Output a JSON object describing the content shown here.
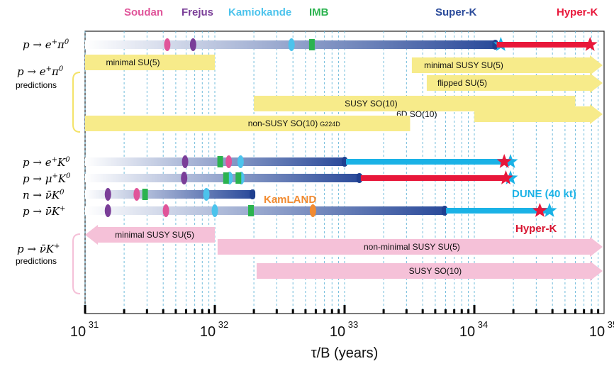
{
  "chart_data": {
    "type": "timeline",
    "xscale": "log10",
    "xlim": [
      1e+31,
      1e+35
    ],
    "xlabel": "τ/B (years)",
    "ticks": [
      {
        "base": "10",
        "exp": "31",
        "value": 1e+31
      },
      {
        "base": "10",
        "exp": "32",
        "value": 1e+32
      },
      {
        "base": "10",
        "exp": "33",
        "value": 1e+33
      },
      {
        "base": "10",
        "exp": "34",
        "value": 1e+34
      },
      {
        "base": "10",
        "exp": "35",
        "value": 1e+35
      }
    ],
    "experiments": [
      {
        "name": "Soudan",
        "color": "#e0559a",
        "position": 1.25e+31
      },
      {
        "name": "Frejus",
        "color": "#7a3e98",
        "position": 5e+31
      },
      {
        "name": "Kamiokande",
        "color": "#4cc3ec",
        "position": 1.8e+32
      },
      {
        "name": "IMB",
        "color": "#2bb34f",
        "position": 6e+32
      },
      {
        "name": "Super-K",
        "color": "#2a4a9a",
        "position": 1.2e+34
      },
      {
        "name": "Hyper-K",
        "color": "#e8173a",
        "position": 8e+34
      }
    ],
    "extra_labels": [
      {
        "text": "KamLAND",
        "color": "#f28b30"
      },
      {
        "text": "DUNE (40 kt)",
        "color": "#1ab2e6"
      },
      {
        "text": "Hyper-K",
        "color": "#d7132f"
      }
    ],
    "groups": [
      {
        "label": "predictions",
        "mode": "p → e⁺π⁰"
      },
      {
        "label": "predictions",
        "mode": "p → ν̄K⁺"
      }
    ],
    "modes": [
      {
        "name": "p → e⁺π⁰",
        "bar_start": 1e+31,
        "superk_limit": 1.45e+34,
        "future": [
          {
            "experiment": "DUNE (40 kt)",
            "limit": 1.6e+34,
            "color": "#1ab2e6",
            "shown_as": "star"
          },
          {
            "experiment": "Hyper-K",
            "limit": 7.8e+34,
            "color": "#e8173a",
            "shown_as": "bar+star"
          }
        ],
        "markers": [
          {
            "experiment": "Soudan",
            "value": 4.3e+31,
            "shape": "diamond",
            "color": "#e0559a"
          },
          {
            "experiment": "Frejus",
            "value": 6.8e+31,
            "shape": "diamond",
            "color": "#7a3e98"
          },
          {
            "experiment": "Kamiokande",
            "value": 3.9e+32,
            "shape": "diamond",
            "color": "#4cc3ec"
          },
          {
            "experiment": "IMB",
            "value": 5.6e+32,
            "shape": "rect",
            "color": "#2bb34f"
          }
        ]
      },
      {
        "name": "p → e⁺K⁰",
        "bar_start": 1e+31,
        "superk_limit": 1e+33,
        "future": [
          {
            "experiment": "DUNE (40 kt)",
            "limit": 1.9e+34,
            "color": "#1ab2e6",
            "shown_as": "bar+star"
          },
          {
            "experiment": "Hyper-K",
            "limit": 1.7e+34,
            "color": "#e8173a",
            "shown_as": "star"
          }
        ],
        "markers": [
          {
            "experiment": "Frejus",
            "value": 5.9e+31,
            "shape": "diamond",
            "color": "#7a3e98"
          },
          {
            "experiment": "IMB",
            "value": 1.1e+32,
            "shape": "rect",
            "color": "#2bb34f"
          },
          {
            "experiment": "Soudan",
            "value": 1.28e+32,
            "shape": "diamond",
            "color": "#e0559a"
          },
          {
            "experiment": "Kamiokande",
            "value": 1.58e+32,
            "shape": "diamond",
            "color": "#4cc3ec"
          }
        ]
      },
      {
        "name": "p → μ⁺K⁰",
        "bar_start": 1e+31,
        "superk_limit": 1.3e+33,
        "future": [
          {
            "experiment": "DUNE (40 kt)",
            "limit": 1.9e+34,
            "color": "#1ab2e6",
            "shown_as": "star"
          },
          {
            "experiment": "Hyper-K",
            "limit": 1.75e+34,
            "color": "#e8173a",
            "shown_as": "bar+star"
          }
        ],
        "markers": [
          {
            "experiment": "Frejus",
            "value": 5.8e+31,
            "shape": "diamond",
            "color": "#7a3e98"
          },
          {
            "experiment": "Kamiokande",
            "value": 1.3e+32,
            "shape": "diamond",
            "color": "#4cc3ec"
          },
          {
            "experiment": "Kamiokande",
            "value": 1.6e+32,
            "shape": "diamond",
            "color": "#4cc3ec"
          },
          {
            "experiment": "IMB",
            "value": 1.22e+32,
            "shape": "rect",
            "color": "#2bb34f"
          },
          {
            "experiment": "IMB",
            "value": 1.52e+32,
            "shape": "rect",
            "color": "#2bb34f"
          }
        ]
      },
      {
        "name": "n → ν̄K⁰",
        "bar_start": 1e+31,
        "superk_limit": 1.95e+32,
        "future": [],
        "markers": [
          {
            "experiment": "Frejus",
            "value": 1.5e+31,
            "shape": "diamond",
            "color": "#7a3e98"
          },
          {
            "experiment": "Soudan",
            "value": 2.5e+31,
            "shape": "diamond",
            "color": "#e0559a"
          },
          {
            "experiment": "IMB",
            "value": 2.9e+31,
            "shape": "rect",
            "color": "#2bb34f"
          },
          {
            "experiment": "Kamiokande",
            "value": 8.6e+31,
            "shape": "diamond",
            "color": "#4cc3ec"
          }
        ]
      },
      {
        "name": "p → ν̄K⁺",
        "bar_start": 1e+31,
        "superk_limit": 5.9e+33,
        "future": [
          {
            "experiment": "DUNE (40 kt)",
            "limit": 3.8e+34,
            "color": "#1ab2e6",
            "shown_as": "bar+star"
          },
          {
            "experiment": "Hyper-K",
            "limit": 3.2e+34,
            "color": "#e8173a",
            "shown_as": "star"
          }
        ],
        "markers": [
          {
            "experiment": "Frejus",
            "value": 1.5e+31,
            "shape": "diamond",
            "color": "#7a3e98"
          },
          {
            "experiment": "Soudan",
            "value": 4.2e+31,
            "shape": "diamond",
            "color": "#e0559a"
          },
          {
            "experiment": "Kamiokande",
            "value": 1e+32,
            "shape": "diamond",
            "color": "#4cc3ec"
          },
          {
            "experiment": "IMB",
            "value": 1.9e+32,
            "shape": "rect",
            "color": "#2bb34f"
          },
          {
            "experiment": "KamLAND",
            "value": 5.7e+32,
            "shape": "ellipse",
            "color": "#f28b30"
          }
        ]
      }
    ],
    "predictions": [
      {
        "text": "minimal SU(5)",
        "from": 1e+31,
        "to": 1e+32,
        "color": "#f7eb8a",
        "arrow": "none",
        "group": "e_pi0"
      },
      {
        "text": "minimal SUSY SU(5)",
        "from": 3.3e+33,
        "to": 1.5e+35,
        "color": "#f7eb8a",
        "arrow": "right",
        "group": "e_pi0"
      },
      {
        "text": "flipped SU(5)",
        "from": 4.3e+33,
        "to": 1.5e+35,
        "color": "#f7eb8a",
        "arrow": "right",
        "group": "e_pi0"
      },
      {
        "text": "SUSY SO(10)",
        "from": 2e+32,
        "to": 6e+34,
        "color": "#f7eb8a",
        "arrow": "none",
        "group": "e_pi0"
      },
      {
        "text": "6D SO(10)",
        "from": 1e+34,
        "to": 1.6e+35,
        "color": "#f7eb8a",
        "arrow": "right",
        "group": "e_pi0"
      },
      {
        "text": "non-SUSY SO(10)",
        "sub": "G224D",
        "from": 1e+31,
        "to": 3.2e+33,
        "color": "#f7eb8a",
        "arrow": "none",
        "group": "e_pi0"
      },
      {
        "text": "minimal SUSY SU(5)",
        "from": 1e+31,
        "to": 1e+32,
        "color": "#f5c1d8",
        "arrow": "left",
        "group": "nu_K"
      },
      {
        "text": "non-minimal SUSY SU(5)",
        "from": 1.05e+32,
        "to": 1.5e+35,
        "color": "#f5c1d8",
        "arrow": "right",
        "group": "nu_K"
      },
      {
        "text": "SUSY SO(10)",
        "from": 2.1e+32,
        "to": 1.5e+35,
        "color": "#f5c1d8",
        "arrow": "right",
        "group": "nu_K"
      }
    ],
    "grid": "vertical dashed at minor decades"
  }
}
